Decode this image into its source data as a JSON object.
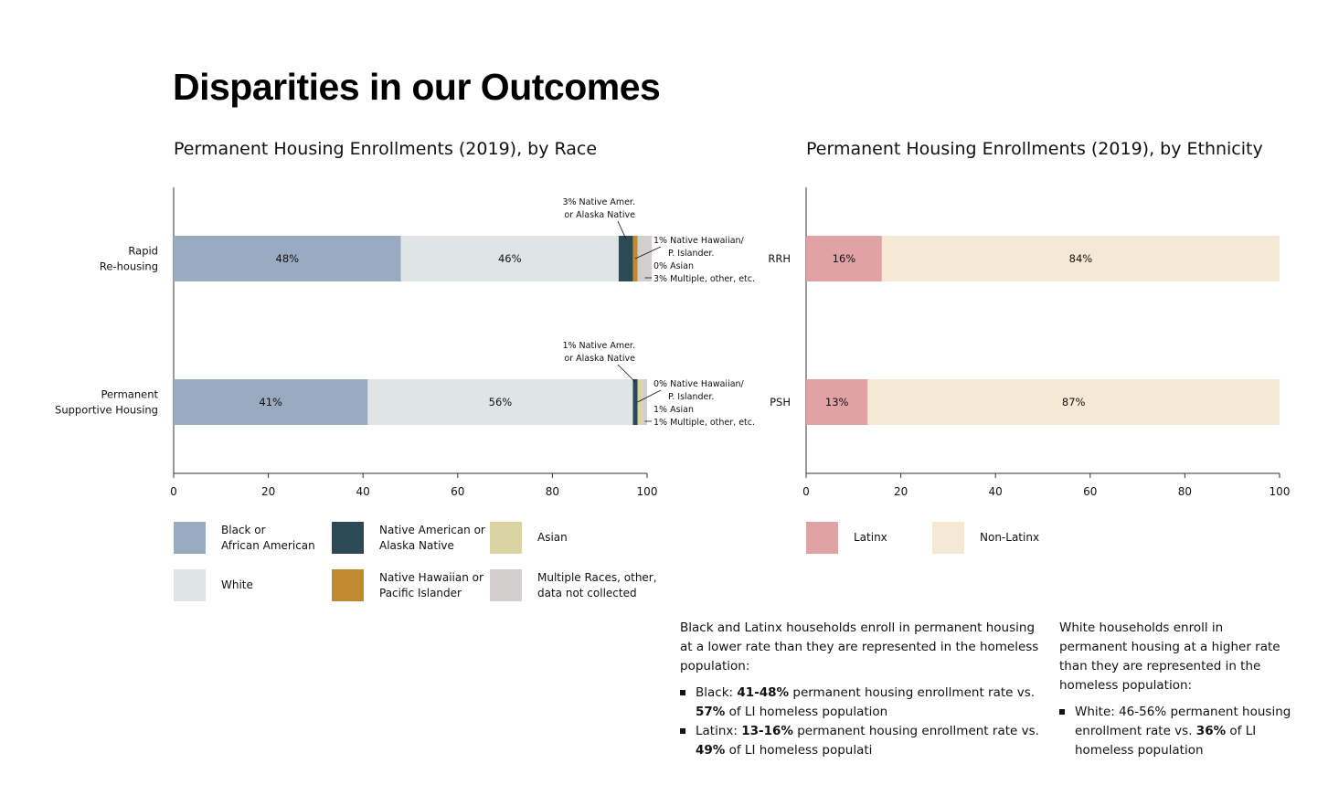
{
  "title": "Disparities in our Outcomes",
  "colors": {
    "black": "#9aaac0",
    "white": "#dfe4e4",
    "native_amer": "#2c4a55",
    "nhpi": "#c18a30",
    "asian": "#dad3a4",
    "multiple": "#d3cfcf",
    "latinx": "#e0a2a5",
    "non_latinx": "#f5e8d4",
    "axis": "#333333"
  },
  "chart_data": [
    {
      "type": "bar",
      "orientation": "horizontal",
      "stacked": true,
      "title": "Permanent Housing Enrollments (2019), by Race",
      "categories": [
        [
          "Rapid",
          "Re-housing"
        ],
        [
          "Permanent",
          "Supportive Housing"
        ]
      ],
      "xlim": [
        0,
        100
      ],
      "xticks": [
        "0",
        "20",
        "40",
        "60",
        "80",
        "100"
      ],
      "series": [
        {
          "name": "Black or African American",
          "color_key": "black",
          "values": [
            48,
            41
          ],
          "labels": [
            "48%",
            "41%"
          ]
        },
        {
          "name": "White",
          "color_key": "white",
          "values": [
            46,
            56
          ],
          "labels": [
            "46%",
            "56%"
          ]
        },
        {
          "name": "Native American or Alaska Native",
          "color_key": "native_amer",
          "values": [
            3,
            1
          ]
        },
        {
          "name": "Native Hawaiian or Pacific Islander",
          "color_key": "nhpi",
          "values": [
            1,
            0
          ]
        },
        {
          "name": "Asian",
          "color_key": "asian",
          "values": [
            0,
            1
          ]
        },
        {
          "name": "Multiple Races, other, data not collected",
          "color_key": "multiple",
          "values": [
            3,
            1
          ]
        }
      ],
      "annotations": {
        "rrh": {
          "native_amer": [
            "3% Native Amer.",
            "or Alaska Native"
          ],
          "nhpi": [
            "1% Native Hawaiian/",
            "P. Islander."
          ],
          "asian": "0% Asian",
          "multiple": "3% Multiple, other, etc."
        },
        "psh": {
          "native_amer": [
            "1% Native Amer.",
            "or Alaska Native"
          ],
          "nhpi": [
            "0% Native Hawaiian/",
            "P. Islander."
          ],
          "asian": "1% Asian",
          "multiple": "1% Multiple, other, etc."
        }
      },
      "legend": [
        {
          "key": "black",
          "lines": [
            "Black or",
            "African American"
          ]
        },
        {
          "key": "native_amer",
          "lines": [
            "Native American or",
            "Alaska Native"
          ]
        },
        {
          "key": "asian",
          "lines": [
            "Asian"
          ]
        },
        {
          "key": "white",
          "lines": [
            "White"
          ]
        },
        {
          "key": "nhpi",
          "lines": [
            "Native Hawaiian or",
            "Pacific Islander"
          ]
        },
        {
          "key": "multiple",
          "lines": [
            "Multiple Races, other,",
            "data not collected"
          ]
        }
      ]
    },
    {
      "type": "bar",
      "orientation": "horizontal",
      "stacked": true,
      "title": "Permanent Housing Enrollments (2019), by Ethnicity",
      "categories": [
        "RRH",
        "PSH"
      ],
      "xlim": [
        0,
        100
      ],
      "xticks": [
        "0",
        "20",
        "40",
        "60",
        "80",
        "100"
      ],
      "series": [
        {
          "name": "Latinx",
          "color_key": "latinx",
          "values": [
            16,
            13
          ],
          "labels": [
            "16%",
            "13%"
          ]
        },
        {
          "name": "Non-Latinx",
          "color_key": "non_latinx",
          "values": [
            84,
            87
          ],
          "labels": [
            "84%",
            "87%"
          ]
        }
      ],
      "legend": [
        {
          "key": "latinx",
          "lines": [
            "Latinx"
          ]
        },
        {
          "key": "non_latinx",
          "lines": [
            "Non-Latinx"
          ]
        }
      ]
    }
  ],
  "notes": {
    "left": {
      "intro": "Black and Latinx households enroll in permanent housing at a lower rate than they are represented in the homeless population:",
      "items": [
        {
          "lead": "Black: ",
          "b1": "41-48%",
          "mid": " permanent housing enrollment rate vs. ",
          "b2": "57%",
          "tail": " of LI homeless population"
        },
        {
          "lead": "Latinx: ",
          "b1": "13-16%",
          "mid": " permanent housing enrollment rate vs. ",
          "b2": "49%",
          "tail": " of LI homeless populati"
        }
      ]
    },
    "right": {
      "intro": "White households enroll in permanent housing at a higher rate than they are represented in the homeless population:",
      "items": [
        {
          "lead": "White: 46-56% permanent housing enrollment rate vs. ",
          "b1": "36%",
          "mid": " of LI homeless population",
          "b2": "",
          "tail": ""
        }
      ]
    }
  }
}
